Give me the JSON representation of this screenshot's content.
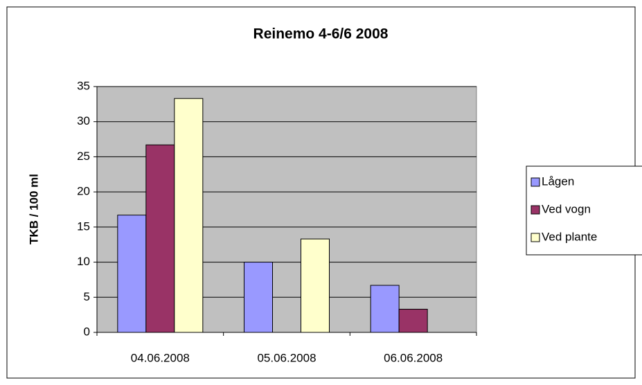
{
  "chart_data": {
    "type": "bar",
    "title": "Reinemo 4-6/6 2008",
    "y_label": "TKB / 100 ml",
    "categories": [
      "04.06.2008",
      "05.06.2008",
      "06.06.2008"
    ],
    "series": [
      {
        "name": "Lågen",
        "color": "#9999ff",
        "values": [
          16.7,
          10,
          6.7
        ]
      },
      {
        "name": "Ved vogn",
        "color": "#993366",
        "values": [
          26.7,
          null,
          3.3
        ]
      },
      {
        "name": "Ved plante",
        "color": "#ffffcc",
        "values": [
          33.3,
          13.3,
          null
        ]
      }
    ],
    "ylim": [
      0,
      35
    ],
    "yticks": [
      0,
      5,
      10,
      15,
      20,
      25,
      30,
      35
    ],
    "grid": true,
    "legend": "right"
  }
}
